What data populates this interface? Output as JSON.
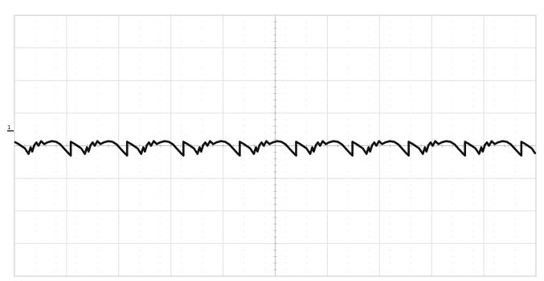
{
  "chart_data": {
    "type": "line",
    "title": "",
    "xlabel": "",
    "ylabel": "",
    "xlim": [
      0,
      10
    ],
    "ylim": [
      -4,
      4
    ],
    "grid": true,
    "channel_marker": "1",
    "reference_level": 0,
    "series": [
      {
        "color": "#111111",
        "pattern_period": 1.08,
        "pattern": [
          {
            "x": 0.0,
            "y": 0.12
          },
          {
            "x": 0.08,
            "y": 0.05
          },
          {
            "x": 0.2,
            "y": -0.08
          },
          {
            "x": 0.27,
            "y": -0.25
          },
          {
            "x": 0.31,
            "y": -0.05
          },
          {
            "x": 0.34,
            "y": -0.18
          },
          {
            "x": 0.38,
            "y": 0.02
          },
          {
            "x": 0.42,
            "y": 0.1
          },
          {
            "x": 0.46,
            "y": 0.0
          },
          {
            "x": 0.51,
            "y": 0.14
          },
          {
            "x": 0.57,
            "y": 0.05
          },
          {
            "x": 0.63,
            "y": 0.1
          },
          {
            "x": 0.72,
            "y": 0.14
          },
          {
            "x": 0.8,
            "y": 0.12
          },
          {
            "x": 0.88,
            "y": 0.04
          },
          {
            "x": 0.96,
            "y": -0.1
          },
          {
            "x": 1.04,
            "y": -0.24
          },
          {
            "x": 1.08,
            "y": -0.3
          }
        ]
      }
    ]
  }
}
